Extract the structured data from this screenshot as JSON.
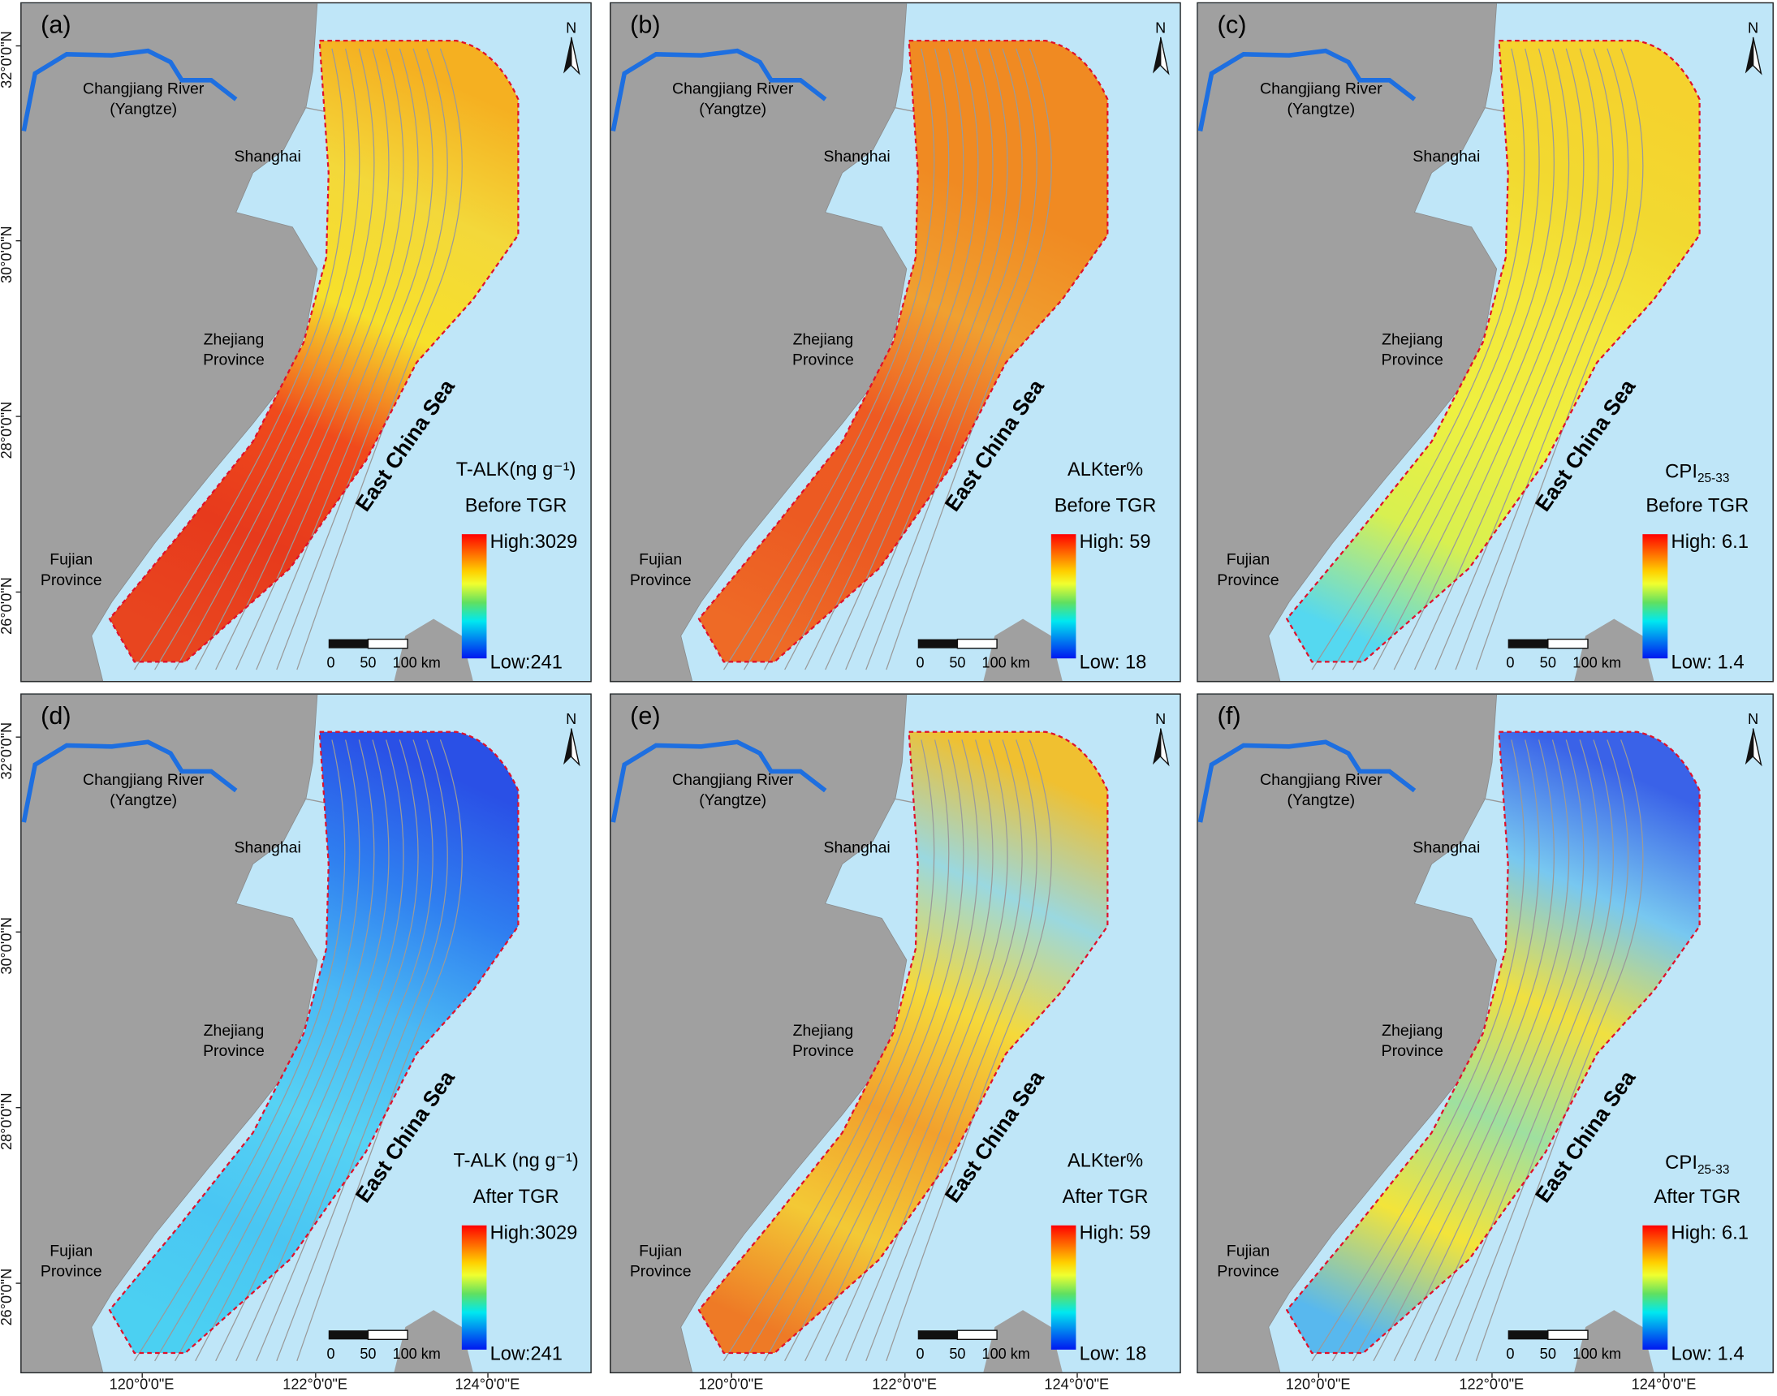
{
  "common": {
    "river_label": "Changjiang River",
    "river_sub": "(Yangtze)",
    "city": "Shanghai",
    "province1": "Zhejiang",
    "province1_sub": "Province",
    "province2": "Fujian",
    "province2_sub": "Province",
    "sea": "East China Sea",
    "north": "N",
    "scale": [
      "0",
      "50",
      "100 km"
    ],
    "colors": {
      "sea": "#bfe6f8",
      "land": "#a0a0a0",
      "river": "#1e6fe0",
      "boundary": "#e0102a"
    }
  },
  "axes": {
    "lat_labels": [
      "32°0'0\"N",
      "30°0'0\"N",
      "28°0'0\"N",
      "26°0'0\"N"
    ],
    "lon_labels": [
      "120°0'0\"E",
      "122°0'0\"E",
      "124°0'0\"E"
    ]
  },
  "panels": [
    {
      "label": "(a)",
      "title": "T-ALK(ng g⁻¹)",
      "title_sub": "",
      "period": "Before TGR",
      "high": "High:3029",
      "low": "Low:241",
      "fill": [
        "#f5b021",
        "#f3d83a",
        "#f7e02a",
        "#f04a1c",
        "#e73a1c",
        "#e8451f"
      ]
    },
    {
      "label": "(b)",
      "title": "ALKter%",
      "title_sub": "",
      "period": "Before TGR",
      "high": "High: 59",
      "low": "Low: 18",
      "fill": [
        "#f08a22",
        "#f08a22",
        "#f0a030",
        "#ee5a22",
        "#ec5a22",
        "#ee6a26"
      ]
    },
    {
      "label": "(c)",
      "title": "CPI",
      "title_sub": "25-33",
      "period": "Before TGR",
      "high": "High: 6.1",
      "low": "Low: 1.4",
      "fill": [
        "#f5d22e",
        "#f2d930",
        "#f4e83a",
        "#eef040",
        "#d8f050",
        "#55d8f0"
      ]
    },
    {
      "label": "(d)",
      "title": "T-ALK (ng g⁻¹)",
      "title_sub": "",
      "period": "After TGR",
      "high": "High:3029",
      "low": "Low:241",
      "fill": [
        "#2a50e6",
        "#2f7ff0",
        "#4ab8f4",
        "#56d2f4",
        "#49c6f3",
        "#4bd0f2"
      ]
    },
    {
      "label": "(e)",
      "title": "ALKter%",
      "title_sub": "",
      "period": "After TGR",
      "high": "High: 59",
      "low": "Low: 18",
      "fill": [
        "#f0c030",
        "#9ad8e0",
        "#f5d93a",
        "#f2a02c",
        "#f3c935",
        "#ee7a26"
      ]
    },
    {
      "label": "(f)",
      "title": "CPI",
      "title_sub": "25-33",
      "period": "After TGR",
      "high": "High: 6.1",
      "low": "Low: 1.4",
      "fill": [
        "#3a62e8",
        "#78c8f0",
        "#f0e040",
        "#9ee0a0",
        "#f3e43a",
        "#58b8ee"
      ]
    }
  ]
}
